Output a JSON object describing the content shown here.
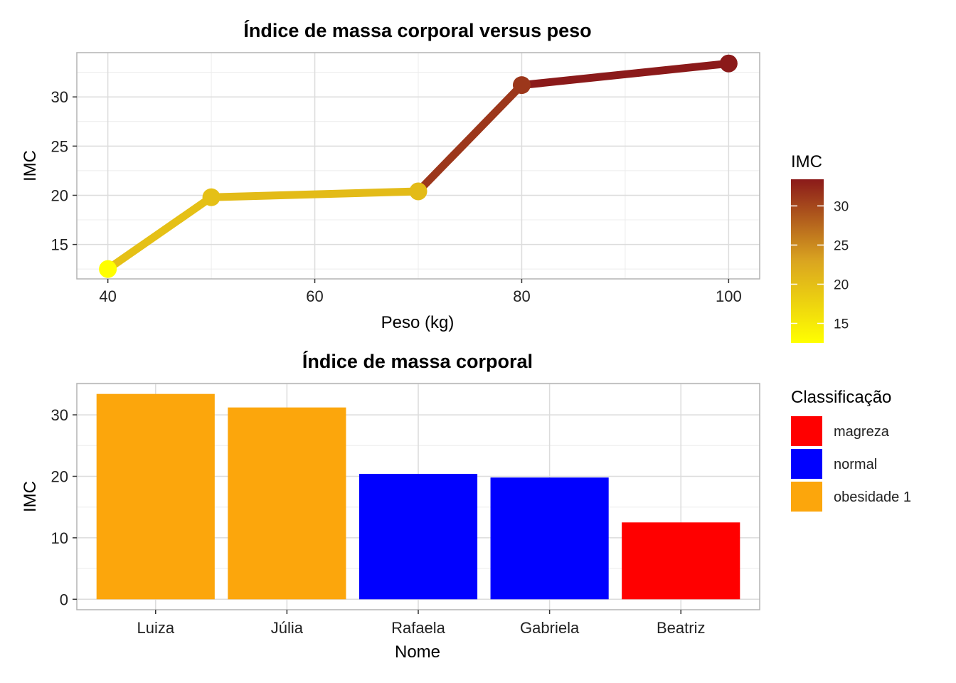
{
  "chart_data": [
    {
      "type": "line",
      "title": "Índice de massa corporal versus peso",
      "xlabel": "Peso (kg)",
      "ylabel": "IMC",
      "xlim": [
        37,
        103
      ],
      "ylim": [
        11.5,
        34.5
      ],
      "x_ticks": [
        40,
        60,
        80,
        100
      ],
      "y_ticks": [
        15,
        20,
        25,
        30
      ],
      "grid": true,
      "series": [
        {
          "x": [
            40,
            50,
            70,
            80,
            100
          ],
          "y": [
            12.5,
            19.8,
            20.4,
            31.2,
            33.4
          ]
        }
      ],
      "color_scale": {
        "title": "IMC",
        "range": [
          12.5,
          33.4
        ],
        "ticks": [
          15,
          20,
          25,
          30
        ],
        "low_color": "#ffff00",
        "mid_color": "#daa520",
        "high_color": "#8b1a1a",
        "legend_position": "right"
      }
    },
    {
      "type": "bar",
      "title": "Índice de massa corporal",
      "xlabel": "Nome",
      "ylabel": "IMC",
      "ylim": [
        -1.7,
        35.1
      ],
      "y_ticks": [
        0,
        10,
        20,
        30
      ],
      "grid": true,
      "categories": [
        "Luiza",
        "Júlia",
        "Rafaela",
        "Gabriela",
        "Beatriz"
      ],
      "values": [
        33.4,
        31.2,
        20.4,
        19.8,
        12.5
      ],
      "classes": [
        "obesidade 1",
        "obesidade 1",
        "normal",
        "normal",
        "magreza"
      ],
      "legend": {
        "title": "Classificação",
        "position": "right",
        "items": [
          {
            "label": "magreza",
            "color": "#ff0000"
          },
          {
            "label": "normal",
            "color": "#0000ff"
          },
          {
            "label": "obesidade 1",
            "color": "#fca60c"
          }
        ]
      }
    }
  ]
}
